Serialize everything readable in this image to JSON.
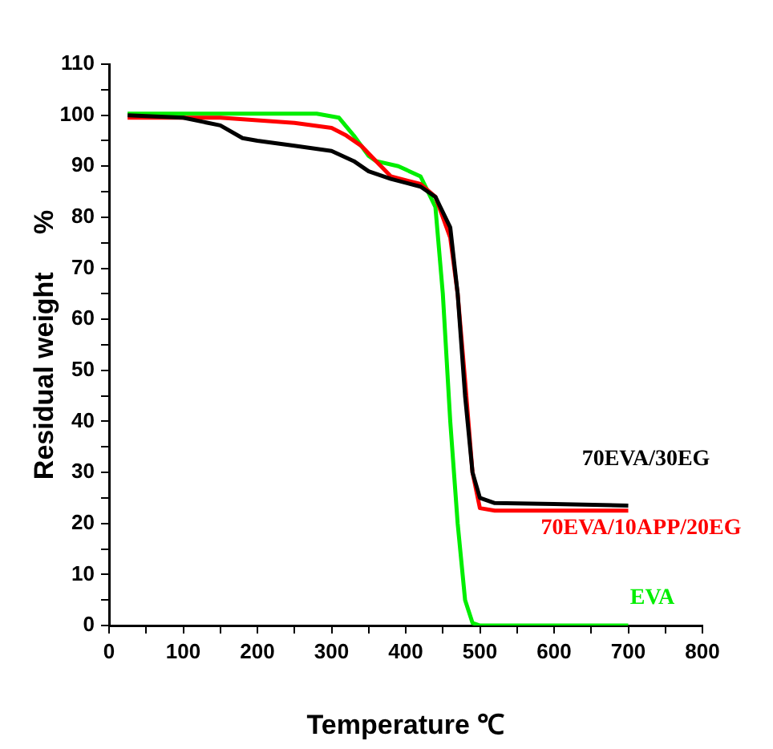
{
  "chart_data": {
    "type": "line",
    "xlabel": "Temperature ℃",
    "ylabel": "Residual weight     %",
    "xlim": [
      0,
      800
    ],
    "ylim": [
      0,
      110
    ],
    "xticks": [
      0,
      {
        "value": 50,
        "label": null
      },
      100,
      {
        "value": 150,
        "label": null
      },
      200,
      {
        "value": 250,
        "label": null
      },
      300,
      {
        "value": 350,
        "label": null
      },
      400,
      {
        "value": 450,
        "label": null
      },
      500,
      {
        "value": 550,
        "label": null
      },
      600,
      {
        "value": 650,
        "label": null
      },
      700,
      {
        "value": 750,
        "label": null
      },
      800
    ],
    "yticks": [
      0,
      {
        "value": 5,
        "label": null
      },
      10,
      {
        "value": 15,
        "label": null
      },
      20,
      {
        "value": 25,
        "label": null
      },
      30,
      {
        "value": 35,
        "label": null
      },
      40,
      {
        "value": 45,
        "label": null
      },
      50,
      {
        "value": 55,
        "label": null
      },
      60,
      {
        "value": 65,
        "label": null
      },
      70,
      {
        "value": 75,
        "label": null
      },
      80,
      {
        "value": 85,
        "label": null
      },
      90,
      {
        "value": 95,
        "label": null
      },
      100,
      {
        "value": 105,
        "label": null
      },
      110
    ],
    "grid": false,
    "legend": false,
    "marker": "none",
    "line_style": "solid",
    "series": [
      {
        "name": "70EVA/30EG",
        "color": "#000000",
        "x": [
          25,
          100,
          150,
          180,
          200,
          250,
          300,
          330,
          350,
          380,
          420,
          440,
          460,
          470,
          480,
          490,
          500,
          520,
          600,
          700
        ],
        "values": [
          100,
          99.5,
          98,
          95.5,
          95,
          94,
          93,
          91,
          89,
          87.5,
          86,
          84,
          78,
          65,
          45,
          30,
          25,
          24,
          23.8,
          23.5
        ]
      },
      {
        "name": "70EVA/10APP/20EG",
        "color": "#ff0000",
        "x": [
          25,
          150,
          250,
          300,
          320,
          340,
          360,
          380,
          420,
          440,
          460,
          470,
          480,
          490,
          500,
          520,
          600,
          700
        ],
        "values": [
          99.5,
          99.5,
          98.5,
          97.5,
          96,
          94,
          91,
          88,
          86.5,
          84,
          76,
          65,
          48,
          30,
          23,
          22.5,
          22.5,
          22.5
        ]
      },
      {
        "name": "EVA",
        "color": "#00ee00",
        "x": [
          25,
          150,
          280,
          310,
          330,
          350,
          360,
          390,
          420,
          440,
          450,
          460,
          470,
          480,
          490,
          500,
          600,
          700
        ],
        "values": [
          100.3,
          100.3,
          100.3,
          99.5,
          96,
          92,
          91,
          90,
          88,
          82,
          65,
          40,
          20,
          5,
          0.5,
          0,
          0,
          0
        ]
      }
    ]
  }
}
